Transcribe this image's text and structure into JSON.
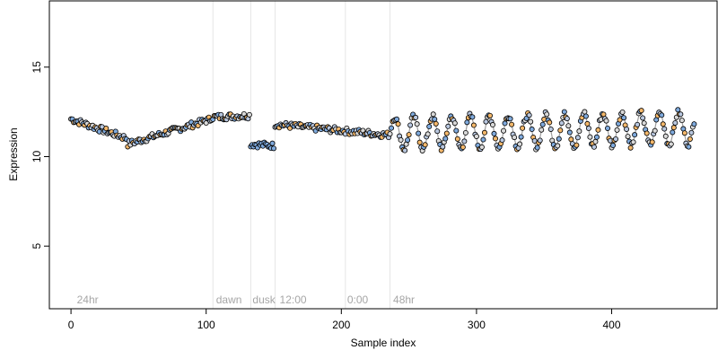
{
  "chart_data": {
    "type": "scatter",
    "title": "",
    "xlabel": "Sample index",
    "ylabel": "Expression",
    "xlim": [
      -16,
      478
    ],
    "ylim": [
      1.5,
      18.7
    ],
    "x_ticks": [
      0,
      100,
      200,
      300,
      400
    ],
    "y_ticks": [
      5,
      10,
      15
    ],
    "grid": false,
    "legend": "none",
    "colors": {
      "marker_edge": "#000000",
      "fill_light": "#b8c7df",
      "fill_orange": "#f4b86b",
      "fill_blue": "#7faadd",
      "trend_line": "#9e9e9e",
      "marker_fill_default": "#d9d9d9",
      "region_line": "#e6e6e6",
      "annotation_text": "#a6a6a6"
    },
    "vertical_lines": [
      105,
      133,
      151,
      203,
      236
    ],
    "annotations": [
      {
        "text": "24hr",
        "x": 3
      },
      {
        "text": "dawn",
        "x": 106
      },
      {
        "text": "dusk",
        "x": 133
      },
      {
        "text": "12:00",
        "x": 153
      },
      {
        "text": "0:00",
        "x": 203
      },
      {
        "text": "48hr",
        "x": 237
      }
    ],
    "segments": [
      {
        "name": "",
        "x_start": 0,
        "x_end": 42,
        "y_start": 12.1,
        "y_end": 11.0
      },
      {
        "name": "",
        "x_start": 42,
        "x_end": 104,
        "y_start": 10.7,
        "y_end": 12.1
      },
      {
        "name": "",
        "x_start": 104,
        "x_end": 133,
        "y_start": 12.2,
        "y_end": 12.3
      },
      {
        "name": "",
        "x_start": 133,
        "x_end": 151,
        "y_start": 10.7,
        "y_end": 10.6
      },
      {
        "name": "",
        "x_start": 151,
        "x_end": 236,
        "y_start": 11.8,
        "y_end": 11.2
      },
      {
        "name": "",
        "x_start": 236,
        "x_end": 462,
        "y_start": 11.3,
        "y_end": 11.6,
        "oscillation_amplitude": 0.9,
        "oscillation_period": 14
      }
    ],
    "point_count": 462
  }
}
